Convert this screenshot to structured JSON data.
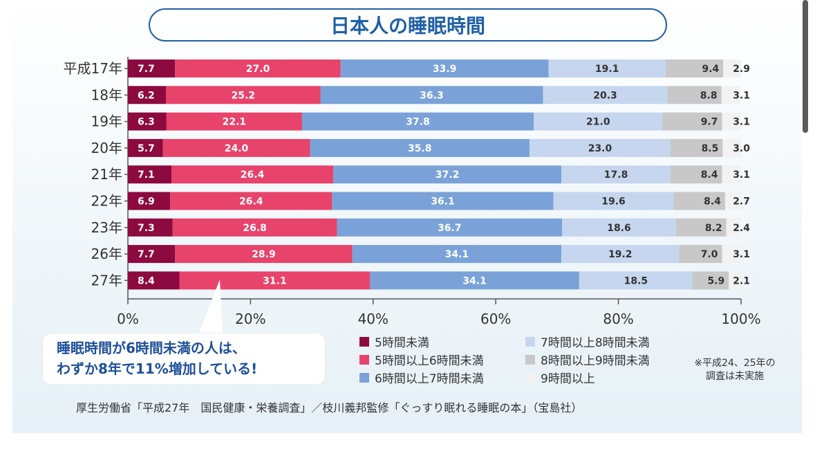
{
  "title": "日本人の睡眠時間",
  "callout": {
    "line1": "睡眠時間が6時間未満の人は、",
    "line2": "わずか8年で11%増加している!"
  },
  "note": {
    "line1": "※平成24、25年の",
    "line2": "調査は未実施"
  },
  "source": "厚生労働省「平成27年　国民健康・栄養調査」／枝川義邦監修「ぐっすり眠れる睡眠の本」（宝島社）",
  "colors": {
    "title": "#1f5fa6",
    "callout_text": "#1d4f9a",
    "text": "#333333"
  },
  "chart_data": {
    "type": "bar",
    "orientation": "horizontal",
    "stacked": true,
    "categories": [
      "平成17年",
      "18年",
      "19年",
      "20年",
      "21年",
      "22年",
      "23年",
      "26年",
      "27年"
    ],
    "x_ticks": [
      "0%",
      "20%",
      "40%",
      "60%",
      "80%",
      "100%"
    ],
    "xlim": [
      0,
      100
    ],
    "legend_position": "bottom",
    "series": [
      {
        "name": "5時間未満",
        "color": "#8c0a3f",
        "values": [
          7.7,
          6.2,
          6.3,
          5.7,
          7.1,
          6.9,
          7.3,
          7.7,
          8.4
        ]
      },
      {
        "name": "5時間以上6時間未満",
        "color": "#e8436b",
        "values": [
          27.0,
          25.2,
          22.1,
          24.0,
          26.4,
          26.4,
          26.8,
          28.9,
          31.1
        ]
      },
      {
        "name": "6時間以上7時間未満",
        "color": "#7aa2d8",
        "values": [
          33.9,
          36.3,
          37.8,
          35.8,
          37.2,
          36.1,
          36.7,
          34.1,
          34.1
        ]
      },
      {
        "name": "7時間以上8時間未満",
        "color": "#c5d6ee",
        "values": [
          19.1,
          20.3,
          21.0,
          23.0,
          17.8,
          19.6,
          18.6,
          19.2,
          18.5
        ]
      },
      {
        "name": "8時間以上9時間未満",
        "color": "#c8c8c8",
        "values": [
          9.4,
          8.8,
          9.7,
          8.5,
          8.4,
          8.4,
          8.2,
          7.0,
          5.9
        ]
      },
      {
        "name": "9時間以上",
        "color": "#f2f2f2",
        "values": [
          2.9,
          3.1,
          3.1,
          3.0,
          3.1,
          2.7,
          2.4,
          3.1,
          2.1
        ]
      }
    ],
    "value_labels": [
      [
        "7.7",
        "27.0",
        "33.9",
        "19.1",
        "9.4",
        "2.9"
      ],
      [
        "6.2",
        "25.2",
        "36.3",
        "20.3",
        "8.8",
        "3.1"
      ],
      [
        "6.3",
        "22.1",
        "37.8",
        "21.0",
        "9.7",
        "3.1"
      ],
      [
        "5.7",
        "24.0",
        "35.8",
        "23.0",
        "8.5",
        "3.0"
      ],
      [
        "7.1",
        "26.4",
        "37.2",
        "17.8",
        "8.4",
        "3.1"
      ],
      [
        "6.9",
        "26.4",
        "36.1",
        "19.6",
        "8.4",
        "2.7"
      ],
      [
        "7.3",
        "26.8",
        "36.7",
        "18.6",
        "8.2",
        "2.4"
      ],
      [
        "7.7",
        "28.9",
        "34.1",
        "19.2",
        "7.0",
        "3.1"
      ],
      [
        "8.4",
        "31.1",
        "34.1",
        "18.5",
        "5.9",
        "2.1"
      ]
    ]
  }
}
